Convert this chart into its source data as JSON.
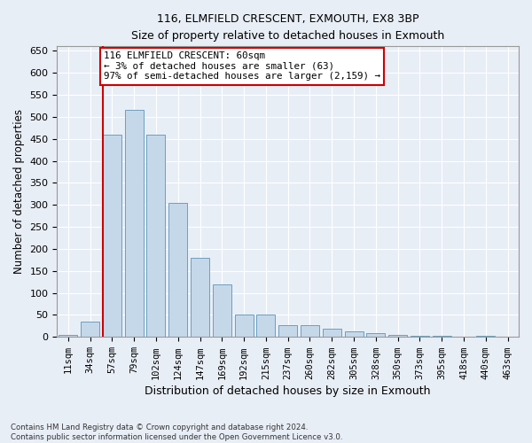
{
  "title": "116, ELMFIELD CRESCENT, EXMOUTH, EX8 3BP",
  "subtitle": "Size of property relative to detached houses in Exmouth",
  "xlabel": "Distribution of detached houses by size in Exmouth",
  "ylabel": "Number of detached properties",
  "categories": [
    "11sqm",
    "34sqm",
    "57sqm",
    "79sqm",
    "102sqm",
    "124sqm",
    "147sqm",
    "169sqm",
    "192sqm",
    "215sqm",
    "237sqm",
    "260sqm",
    "282sqm",
    "305sqm",
    "328sqm",
    "350sqm",
    "373sqm",
    "395sqm",
    "418sqm",
    "440sqm",
    "463sqm"
  ],
  "values": [
    5,
    35,
    460,
    515,
    460,
    305,
    180,
    120,
    50,
    50,
    27,
    27,
    18,
    12,
    8,
    5,
    3,
    2,
    1,
    2,
    1
  ],
  "bar_color": "#c5d8ea",
  "bar_edge_color": "#6a9fc0",
  "property_line_color": "#cc0000",
  "annotation_line1": "116 ELMFIELD CRESCENT: 60sqm",
  "annotation_line2": "← 3% of detached houses are smaller (63)",
  "annotation_line3": "97% of semi-detached houses are larger (2,159) →",
  "annotation_box_edgecolor": "#cc0000",
  "annotation_fill": "#ffffff",
  "ylim": [
    0,
    660
  ],
  "yticks": [
    0,
    50,
    100,
    150,
    200,
    250,
    300,
    350,
    400,
    450,
    500,
    550,
    600,
    650
  ],
  "background_color": "#e8eef6",
  "grid_color": "#ffffff",
  "footer_line1": "Contains HM Land Registry data © Crown copyright and database right 2024.",
  "footer_line2": "Contains public sector information licensed under the Open Government Licence v3.0."
}
